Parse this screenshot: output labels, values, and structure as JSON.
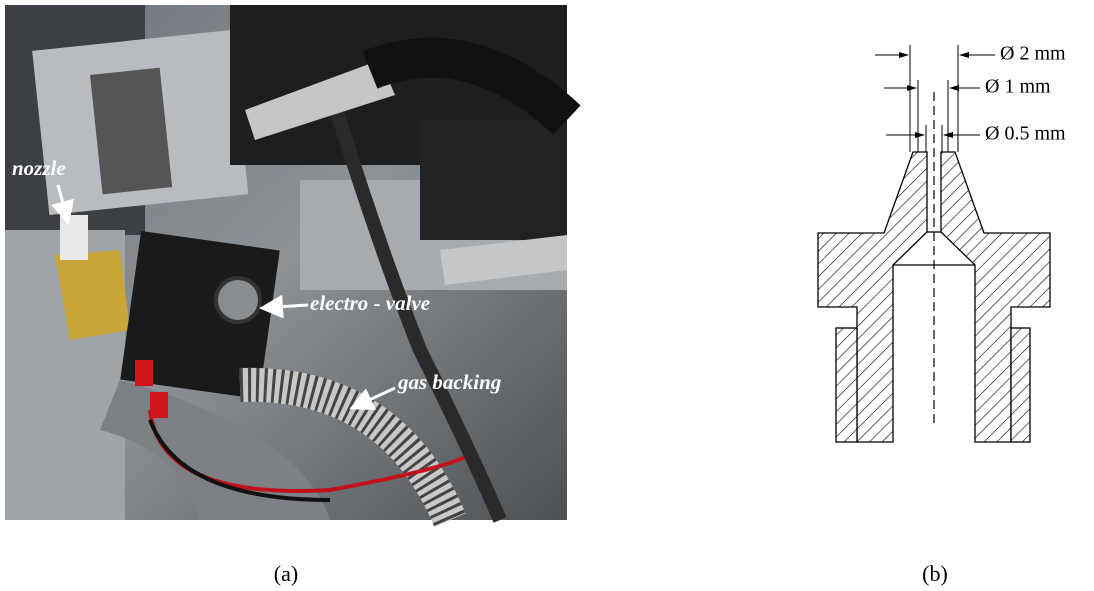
{
  "panel_a": {
    "labels": [
      "nozzle",
      "electro - valve",
      "gas backing"
    ],
    "caption": "(a)"
  },
  "panel_b": {
    "dimensions": [
      "Ø 2 mm",
      "Ø 1 mm",
      "Ø 0.5 mm"
    ],
    "caption": "(b)"
  }
}
